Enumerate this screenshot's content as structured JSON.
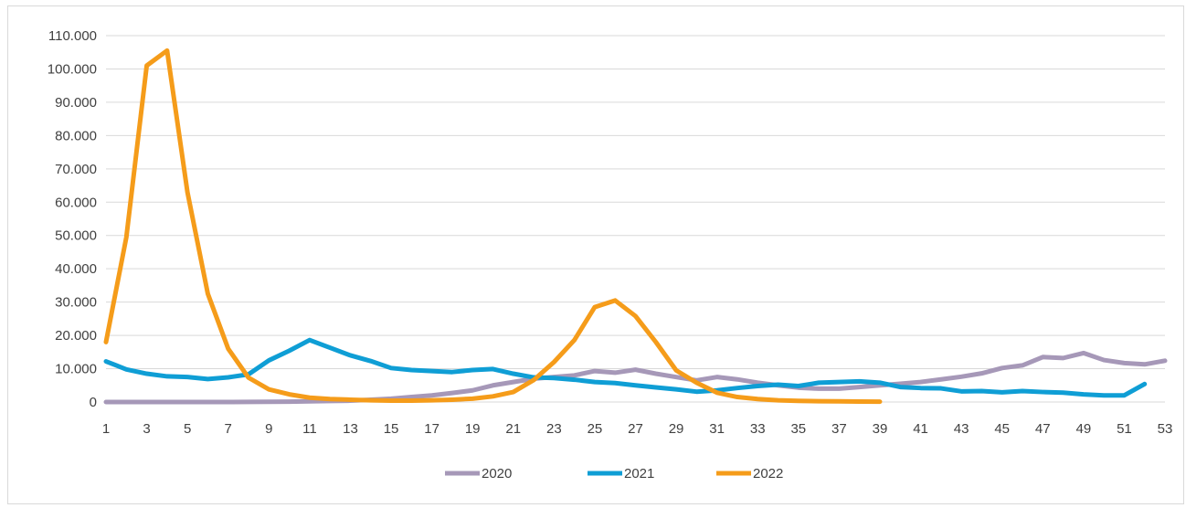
{
  "chart_data": {
    "type": "line",
    "title": "",
    "xlabel": "",
    "ylabel": "",
    "x": [
      1,
      2,
      3,
      4,
      5,
      6,
      7,
      8,
      9,
      10,
      11,
      12,
      13,
      14,
      15,
      16,
      17,
      18,
      19,
      20,
      21,
      22,
      23,
      24,
      25,
      26,
      27,
      28,
      29,
      30,
      31,
      32,
      33,
      34,
      35,
      36,
      37,
      38,
      39,
      40,
      41,
      42,
      43,
      44,
      45,
      46,
      47,
      48,
      49,
      50,
      51,
      52,
      53
    ],
    "x_tick_labels": [
      "1",
      "3",
      "5",
      "7",
      "9",
      "11",
      "13",
      "15",
      "17",
      "19",
      "21",
      "23",
      "25",
      "27",
      "29",
      "31",
      "33",
      "35",
      "37",
      "39",
      "41",
      "43",
      "45",
      "47",
      "49",
      "51",
      "53"
    ],
    "ylim": [
      0,
      110000
    ],
    "y_ticks": [
      0,
      10000,
      20000,
      30000,
      40000,
      50000,
      60000,
      70000,
      80000,
      90000,
      100000,
      110000
    ],
    "y_tick_labels": [
      "0",
      "10.000",
      "20.000",
      "30.000",
      "40.000",
      "50.000",
      "60.000",
      "70.000",
      "80.000",
      "90.000",
      "100.000",
      "110.000"
    ],
    "grid": "horizontal",
    "legend_position": "bottom",
    "series": [
      {
        "name": "2020",
        "color": "#a698b8",
        "x": [
          1,
          2,
          3,
          4,
          5,
          6,
          7,
          8,
          9,
          10,
          11,
          12,
          13,
          14,
          15,
          16,
          17,
          18,
          19,
          20,
          21,
          22,
          23,
          24,
          25,
          26,
          27,
          28,
          29,
          30,
          31,
          32,
          33,
          34,
          35,
          36,
          37,
          38,
          39,
          40,
          41,
          42,
          43,
          44,
          45,
          46,
          47,
          48,
          49,
          50,
          51,
          52,
          53
        ],
        "values": [
          0,
          0,
          0,
          0,
          0,
          0,
          0,
          50,
          80,
          100,
          200,
          300,
          400,
          700,
          1000,
          1500,
          2000,
          2700,
          3500,
          5000,
          6000,
          7000,
          7500,
          8000,
          9300,
          8800,
          9700,
          8500,
          7500,
          6500,
          7500,
          6800,
          5800,
          5000,
          4300,
          4000,
          4000,
          4500,
          5000,
          5500,
          6000,
          6800,
          7600,
          8600,
          10200,
          11000,
          13500,
          13200,
          14700,
          12600,
          11700,
          11300,
          12400
        ]
      },
      {
        "name": "2021",
        "color": "#0f9ed5",
        "x": [
          1,
          2,
          3,
          4,
          5,
          6,
          7,
          8,
          9,
          10,
          11,
          12,
          13,
          14,
          15,
          16,
          17,
          18,
          19,
          20,
          21,
          22,
          23,
          24,
          25,
          26,
          27,
          28,
          29,
          30,
          31,
          32,
          33,
          34,
          35,
          36,
          37,
          38,
          39,
          40,
          41,
          42,
          43,
          44,
          45,
          46,
          47,
          48,
          49,
          50,
          51,
          52
        ],
        "values": [
          12200,
          9800,
          8500,
          7700,
          7500,
          6900,
          7400,
          8300,
          12500,
          15400,
          18600,
          16300,
          14000,
          12300,
          10200,
          9600,
          9300,
          9000,
          9600,
          9900,
          8500,
          7400,
          7200,
          6700,
          6000,
          5700,
          5000,
          4400,
          3800,
          3100,
          3500,
          4200,
          4800,
          5200,
          4800,
          5800,
          6000,
          6200,
          5800,
          4500,
          4200,
          4100,
          3200,
          3300,
          2900,
          3300,
          3000,
          2800,
          2300,
          2000,
          2000,
          5400
        ]
      },
      {
        "name": "2022",
        "color": "#f59c1a",
        "x": [
          1,
          2,
          3,
          4,
          5,
          6,
          7,
          8,
          9,
          10,
          11,
          12,
          13,
          14,
          15,
          16,
          17,
          18,
          19,
          20,
          21,
          22,
          23,
          24,
          25,
          26,
          27,
          28,
          29,
          30,
          31,
          32,
          33,
          34,
          35,
          36,
          37,
          38,
          39
        ],
        "values": [
          18000,
          49500,
          101000,
          105500,
          63000,
          32500,
          16000,
          7300,
          3800,
          2300,
          1300,
          900,
          700,
          500,
          400,
          400,
          500,
          700,
          1000,
          1700,
          3000,
          6600,
          12000,
          18600,
          28500,
          30500,
          25800,
          18000,
          9500,
          5800,
          2800,
          1500,
          900,
          500,
          350,
          250,
          200,
          150,
          100
        ]
      }
    ]
  }
}
